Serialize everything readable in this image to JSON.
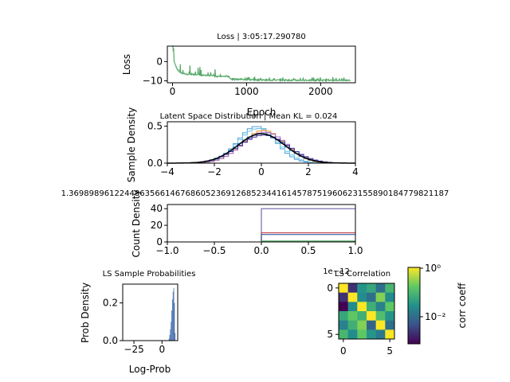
{
  "chart_data": [
    {
      "type": "line",
      "title": "Loss | 3:05:17.290780",
      "xlabel": "Epoch",
      "ylabel": "Loss",
      "xlim": [
        -70,
        2470
      ],
      "ylim": [
        -11,
        8
      ],
      "xticks": [
        0,
        1000,
        2000
      ],
      "yticks": [
        0,
        -10
      ],
      "color": "#55a868",
      "series": [
        {
          "x": [
            0,
            10,
            20,
            40,
            60,
            80,
            100,
            150,
            200,
            250,
            300,
            350,
            400,
            450,
            500,
            550,
            600,
            650,
            700,
            750,
            800,
            850,
            900,
            1000,
            1100,
            1200,
            1300,
            1400,
            1500,
            1600,
            1700,
            1800,
            1900,
            2000,
            2100,
            2200,
            2300,
            2400
          ],
          "values": [
            8,
            5,
            0,
            -2,
            -4,
            -5,
            -6,
            -6.5,
            -7,
            -7,
            -7,
            -7,
            -7.5,
            -7.5,
            -7.5,
            -7.5,
            -8,
            -8,
            -8,
            -8,
            -9.5,
            -9.5,
            -9.6,
            -9.7,
            -9.8,
            -9.8,
            -9.9,
            -9.9,
            -9.9,
            -10,
            -10,
            -10,
            -10,
            -10,
            -10,
            -10,
            -10,
            -10
          ]
        }
      ]
    },
    {
      "type": "line",
      "title": "Latent Space Distribution | Mean KL = 0.024",
      "ylabel": "Sample Density",
      "xlim": [
        -4,
        4
      ],
      "ylim": [
        0,
        0.56
      ],
      "xticks": [
        -4,
        -2,
        0,
        2,
        4
      ],
      "yticks": [
        0.0,
        0.5
      ],
      "series": [
        {
          "color": "#4c9fd4",
          "mean": -0.2,
          "sd": 0.8
        },
        {
          "color": "#6cc0e8",
          "mean": -0.15,
          "sd": 0.85
        },
        {
          "color": "#f28e2b",
          "mean": 0.1,
          "sd": 0.9
        },
        {
          "color": "#a26acf",
          "mean": 0.15,
          "sd": 0.95
        },
        {
          "color": "#2a7fba",
          "mean": 0.0,
          "sd": 1.0
        },
        {
          "color": "#3b2d8f",
          "mean": 0.1,
          "sd": 1.05
        },
        {
          "color": "#000000",
          "mean": 0.0,
          "sd": 1.0
        }
      ]
    },
    {
      "type": "line",
      "title": "1.369898961224486356614676860523691268523441614578751960623155890184779821187",
      "ylabel": "Count Density",
      "xlim": [
        -1.0,
        1.0
      ],
      "ylim": [
        0,
        45
      ],
      "xticks": [
        -1.0,
        -0.5,
        0.0,
        0.5,
        1.0
      ],
      "yticks": [
        0,
        20,
        40
      ],
      "offset_label": "1e−12",
      "series": [
        {
          "color": "#8172b2",
          "level": 40
        },
        {
          "color": "#c44e52",
          "level": 11
        },
        {
          "color": "#4c72b0",
          "level": 9
        },
        {
          "color": "#55a868",
          "level": 1
        }
      ]
    },
    {
      "type": "bar",
      "title": "LS Sample Probabilities",
      "xlabel": "Log-Prob",
      "ylabel": "Prob Density",
      "xlim": [
        -35,
        14
      ],
      "ylim": [
        0,
        0.3
      ],
      "xticks": [
        -25,
        0
      ],
      "yticks": [
        0.0,
        0.2
      ],
      "color": "#4c72b0",
      "x": [
        6.0,
        6.6,
        7.2,
        7.8,
        8.4,
        9.0,
        9.6,
        10.2,
        10.8,
        11.4
      ],
      "values": [
        0.01,
        0.03,
        0.06,
        0.1,
        0.16,
        0.22,
        0.26,
        0.28,
        0.2,
        0.04
      ]
    },
    {
      "type": "heatmap",
      "title": "LS Correlation",
      "colorbar_label": "corr coeff",
      "colorbar_ticks": [
        "10⁰",
        "10⁻²"
      ],
      "xticks": [
        0,
        5
      ],
      "yticks": [
        0,
        5
      ],
      "matrix": [
        [
          1.0,
          0.005,
          0.05,
          0.08,
          0.02,
          0.12
        ],
        [
          0.005,
          1.0,
          0.04,
          0.02,
          0.3,
          0.04
        ],
        [
          0.002,
          0.04,
          1.0,
          0.1,
          0.03,
          0.2
        ],
        [
          0.08,
          0.2,
          0.1,
          1.0,
          0.15,
          0.05
        ],
        [
          0.03,
          0.1,
          0.3,
          0.015,
          1.0,
          0.02
        ],
        [
          0.12,
          0.04,
          0.2,
          0.05,
          0.025,
          1.0
        ]
      ]
    }
  ]
}
